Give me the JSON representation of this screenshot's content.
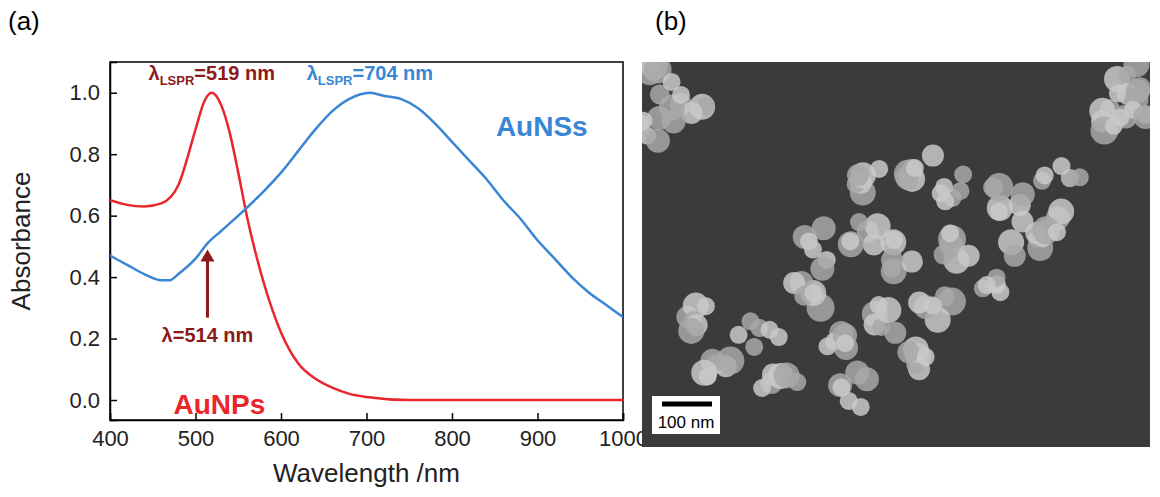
{
  "chart_data": {
    "type": "line",
    "panel": "(a)",
    "x_label": "Wavelength /nm",
    "y_label": "Absorbance",
    "xlim": [
      400,
      1000
    ],
    "xticks": [
      400,
      500,
      600,
      700,
      800,
      900,
      1000
    ],
    "ylim": [
      -0.065,
      1.1
    ],
    "yticks": [
      {
        "value": 0,
        "label": "0.0"
      },
      0.2,
      0.4,
      0.6,
      0.8,
      {
        "value": 1,
        "label": "1.0"
      }
    ],
    "grid": false,
    "series": [
      {
        "name": "AuNPs",
        "color": "#e8262b",
        "label_x": 528,
        "label_y": -0.045,
        "x": [
          400,
          420,
          440,
          460,
          480,
          500,
          510,
          519,
          530,
          540,
          550,
          560,
          580,
          600,
          620,
          640,
          660,
          680,
          700,
          750,
          800,
          900,
          1000
        ],
        "values": [
          0.65,
          0.635,
          0.63,
          0.64,
          0.7,
          0.88,
          0.97,
          1.0,
          0.96,
          0.87,
          0.74,
          0.6,
          0.38,
          0.22,
          0.12,
          0.07,
          0.04,
          0.02,
          0.01,
          0.0,
          0.0,
          0.0,
          0.0
        ]
      },
      {
        "name": "AuNSs",
        "color": "#3a86d4",
        "label_x": 905,
        "label_y": 0.86,
        "x": [
          400,
          420,
          440,
          460,
          470,
          480,
          500,
          514,
          530,
          550,
          580,
          600,
          620,
          640,
          660,
          680,
          704,
          720,
          740,
          760,
          780,
          800,
          820,
          840,
          860,
          880,
          900,
          920,
          940,
          960,
          980,
          1000
        ],
        "values": [
          0.47,
          0.44,
          0.41,
          0.39,
          0.39,
          0.41,
          0.46,
          0.51,
          0.55,
          0.6,
          0.68,
          0.74,
          0.81,
          0.88,
          0.94,
          0.98,
          1.0,
          0.99,
          0.98,
          0.95,
          0.9,
          0.84,
          0.78,
          0.72,
          0.65,
          0.59,
          0.52,
          0.46,
          0.4,
          0.35,
          0.31,
          0.27
        ]
      }
    ],
    "annotations": [
      {
        "text": "λ",
        "sub": "LSPR",
        "after": "=519 nm",
        "x": 519,
        "y": 1.04,
        "color": "#8b1a1a"
      },
      {
        "text": "λ",
        "sub": "LSPR",
        "after": "=704 nm",
        "x": 704,
        "y": 1.04,
        "color": "#3a86d4"
      },
      {
        "text": "λ=514 nm",
        "x": 514,
        "y": 0.19,
        "arrow_to": 0.49,
        "color": "#8b1a1a"
      }
    ]
  },
  "image": {
    "panel": "(b)",
    "scale_bar": "100 nm"
  }
}
